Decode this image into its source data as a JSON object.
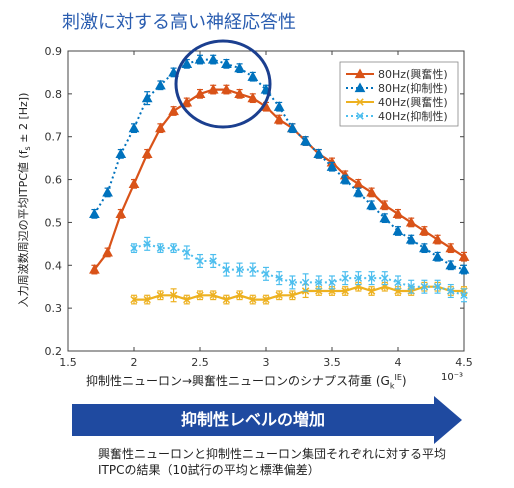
{
  "header": {
    "title": "刺激に対する高い神経応答性"
  },
  "banner": {
    "label": "抑制性レベルの増加"
  },
  "caption": {
    "text": "興奮性ニューロンと抑制性ニューロン集団それぞれに対する平均ITPCの結果（10試行の平均と標準偏差）"
  },
  "colors": {
    "orange": "#d95319",
    "blue": "#0072bd",
    "yellow": "#edb120",
    "lightblue": "#4dbeee",
    "banner": "#1f4aa0",
    "circle": "#1b3f8f"
  },
  "chart_data": {
    "type": "line",
    "title": "",
    "xlabel_main": "抑制性ニューロン→興奮性ニューロンのシナプス荷重 (G",
    "xlabel_sub": "k",
    "xlabel_sup": "IE",
    "xlabel_close": ")",
    "x_exponent": "10⁻³",
    "ylabel": "入力周波数周辺の平均ITPC値 (f",
    "ylabel_sub": "s",
    "ylabel_tail": " ± 2 [Hz])",
    "xlim": [
      1.5,
      4.5
    ],
    "ylim": [
      0.2,
      0.9
    ],
    "x_ticks": [
      "1.5",
      "2",
      "2.5",
      "3",
      "3.5",
      "4",
      "4.5"
    ],
    "y_ticks": [
      "0.2",
      "0.3",
      "0.4",
      "0.5",
      "0.6",
      "0.7",
      "0.8",
      "0.9"
    ],
    "grid": false,
    "legend_position": "top-right",
    "x": [
      1.7,
      1.8,
      1.9,
      2.0,
      2.1,
      2.2,
      2.3,
      2.4,
      2.5,
      2.6,
      2.7,
      2.8,
      2.9,
      3.0,
      3.1,
      3.2,
      3.3,
      3.4,
      3.5,
      3.6,
      3.7,
      3.8,
      3.9,
      4.0,
      4.1,
      4.2,
      4.3,
      4.4,
      4.5
    ],
    "series": [
      {
        "name": "80Hz(興奮性)",
        "color": "#d95319",
        "style": "solid",
        "marker": "triangle",
        "values": [
          0.39,
          0.43,
          0.52,
          0.59,
          0.66,
          0.72,
          0.76,
          0.78,
          0.8,
          0.81,
          0.81,
          0.8,
          0.79,
          0.77,
          0.74,
          0.72,
          0.69,
          0.66,
          0.64,
          0.61,
          0.59,
          0.57,
          0.54,
          0.52,
          0.5,
          0.48,
          0.46,
          0.44,
          0.42
        ],
        "err": [
          0.01,
          0.01,
          0.01,
          0.01,
          0.01,
          0.01,
          0.01,
          0.01,
          0.01,
          0.01,
          0.01,
          0.01,
          0.01,
          0.01,
          0.01,
          0.01,
          0.01,
          0.01,
          0.01,
          0.01,
          0.01,
          0.01,
          0.01,
          0.01,
          0.01,
          0.01,
          0.01,
          0.01,
          0.01
        ]
      },
      {
        "name": "80Hz(抑制性)",
        "color": "#0072bd",
        "style": "dotted",
        "marker": "triangle",
        "values": [
          0.52,
          0.57,
          0.66,
          0.72,
          0.79,
          0.82,
          0.85,
          0.87,
          0.88,
          0.88,
          0.87,
          0.86,
          0.84,
          0.81,
          0.77,
          0.72,
          0.69,
          0.66,
          0.63,
          0.6,
          0.57,
          0.54,
          0.51,
          0.48,
          0.46,
          0.44,
          0.42,
          0.4,
          0.39
        ],
        "err": [
          0.01,
          0.01,
          0.01,
          0.01,
          0.015,
          0.01,
          0.01,
          0.01,
          0.01,
          0.01,
          0.01,
          0.01,
          0.01,
          0.01,
          0.01,
          0.01,
          0.01,
          0.01,
          0.01,
          0.01,
          0.01,
          0.01,
          0.01,
          0.01,
          0.01,
          0.01,
          0.01,
          0.01,
          0.01
        ]
      },
      {
        "name": "40Hz(興奮性)",
        "color": "#edb120",
        "style": "solid",
        "marker": "x",
        "values": [
          null,
          null,
          null,
          0.32,
          0.32,
          0.33,
          0.33,
          0.32,
          0.33,
          0.33,
          0.32,
          0.33,
          0.32,
          0.32,
          0.33,
          0.33,
          0.34,
          0.34,
          0.34,
          0.34,
          0.35,
          0.34,
          0.35,
          0.34,
          0.34,
          0.35,
          0.35,
          0.34,
          0.34
        ],
        "err": [
          null,
          null,
          null,
          0.01,
          0.01,
          0.01,
          0.015,
          0.01,
          0.01,
          0.01,
          0.01,
          0.01,
          0.01,
          0.01,
          0.01,
          0.01,
          0.015,
          0.01,
          0.01,
          0.01,
          0.01,
          0.01,
          0.01,
          0.01,
          0.01,
          0.01,
          0.01,
          0.01,
          0.01
        ]
      },
      {
        "name": "40Hz(抑制性)",
        "color": "#4dbeee",
        "style": "dotted",
        "marker": "x",
        "values": [
          null,
          null,
          null,
          0.44,
          0.45,
          0.44,
          0.44,
          0.43,
          0.41,
          0.41,
          0.39,
          0.39,
          0.39,
          0.38,
          0.37,
          0.36,
          0.36,
          0.36,
          0.36,
          0.37,
          0.37,
          0.37,
          0.37,
          0.36,
          0.35,
          0.35,
          0.35,
          0.34,
          0.33
        ],
        "err": [
          null,
          null,
          null,
          0.01,
          0.015,
          0.01,
          0.01,
          0.015,
          0.015,
          0.015,
          0.015,
          0.015,
          0.015,
          0.015,
          0.015,
          0.015,
          0.02,
          0.015,
          0.015,
          0.015,
          0.015,
          0.015,
          0.015,
          0.015,
          0.015,
          0.015,
          0.015,
          0.015,
          0.015
        ]
      }
    ]
  }
}
